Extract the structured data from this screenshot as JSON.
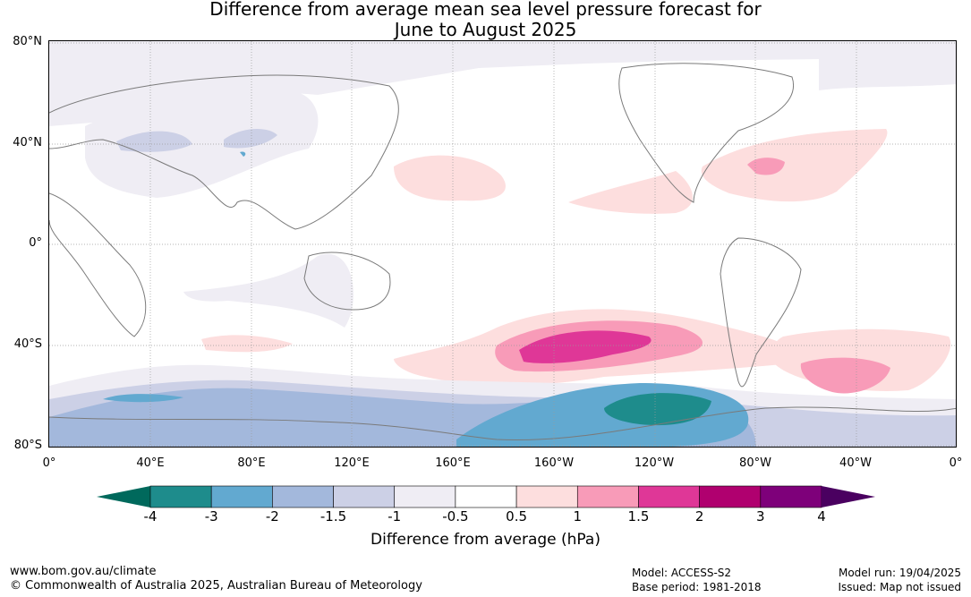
{
  "title_line1": "Difference from average mean sea level pressure forecast for",
  "title_line2": "June to August 2025",
  "lat_labels": [
    "80°N",
    "40°N",
    "0°",
    "40°S",
    "80°S"
  ],
  "lon_labels": [
    "0°",
    "40°E",
    "80°E",
    "120°E",
    "160°E",
    "160°W",
    "120°W",
    "80°W",
    "40°W",
    "0°"
  ],
  "colorbar": {
    "ticks": [
      "-4",
      "-3",
      "-2",
      "-1.5",
      "-1",
      "-0.5",
      "0.5",
      "1",
      "1.5",
      "2",
      "3",
      "4"
    ],
    "under_color": "#00695c",
    "over_color": "#4a0060",
    "colors": [
      "#1e8c8c",
      "#62a9d0",
      "#a3b8dc",
      "#ccd0e6",
      "#efedf4",
      "#ffffff",
      "#fddede",
      "#f89bb8",
      "#df3797",
      "#b0006f",
      "#7e007a"
    ],
    "title": "Difference from average (hPa)"
  },
  "footer": {
    "url": "www.bom.gov.au/climate",
    "copyright": "© Commonwealth of Australia 2025, Australian Bureau of Meteorology",
    "model": "Model: ACCESS-S2",
    "base_period": "Base period: 1981-2018",
    "model_run": "Model run: 19/04/2025",
    "issued": "Issued: Map not issued"
  }
}
